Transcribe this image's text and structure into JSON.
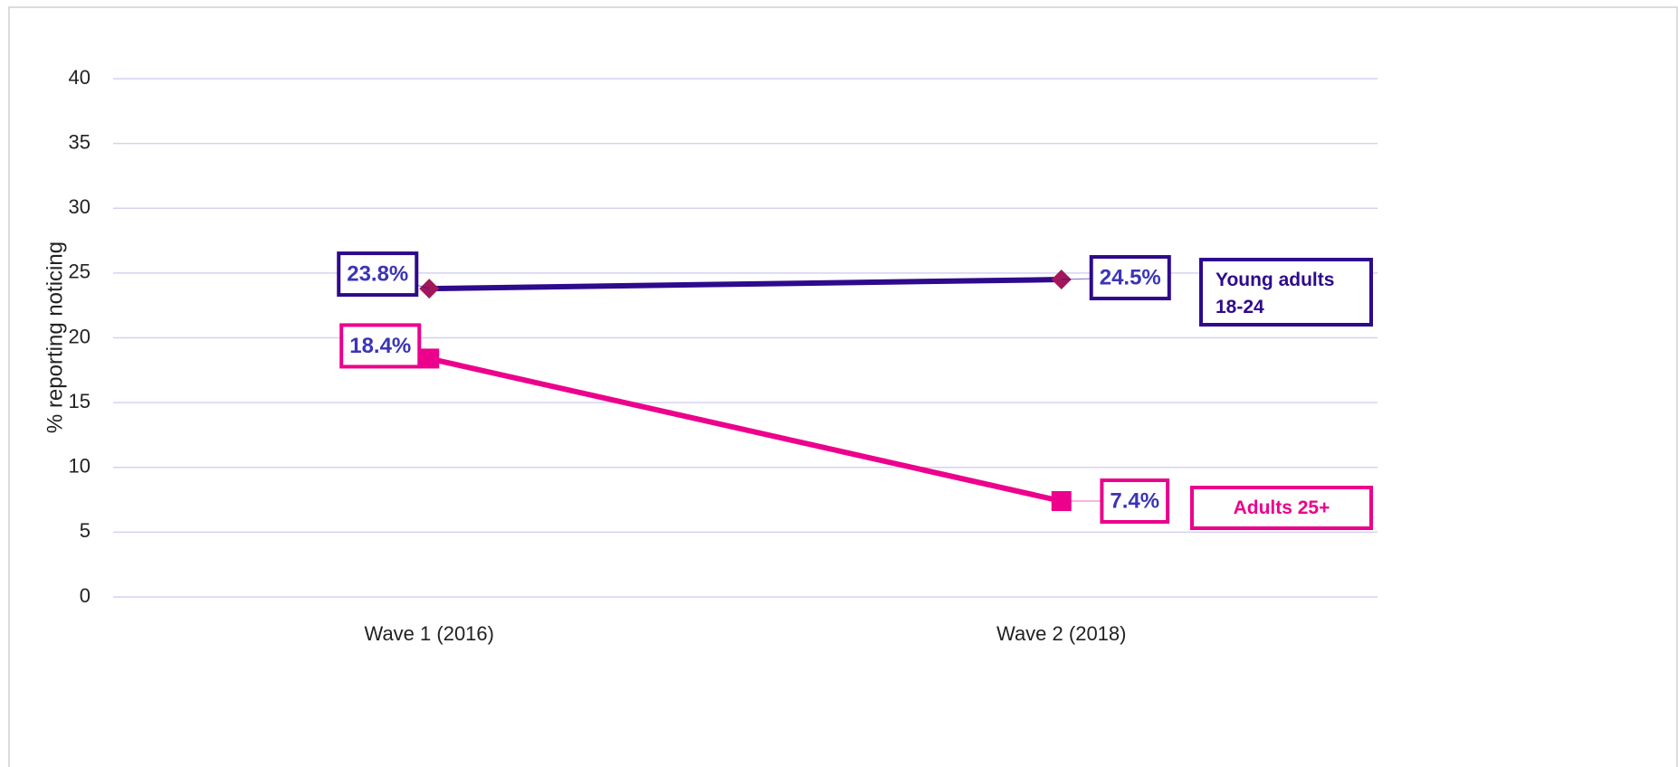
{
  "chart_data": {
    "type": "line",
    "y_label": "% reporting noticing",
    "categories": [
      "Wave 1 (2016)",
      "Wave 2 (2018)"
    ],
    "series": [
      {
        "name": "Young adults 18-24",
        "color": "#2e0a8c",
        "marker": "diamond",
        "marker_color": "#a3175a",
        "values": [
          23.8,
          24.5
        ],
        "value_labels": [
          "23.8%",
          "24.5%"
        ]
      },
      {
        "name": "Adults 25+",
        "color": "#ec008c",
        "marker": "square",
        "marker_color": "#ec008c",
        "values": [
          18.4,
          7.4
        ],
        "value_labels": [
          "18.4%",
          "7.4%"
        ]
      }
    ],
    "ylim": [
      0,
      40
    ],
    "yticks": [
      0,
      5,
      10,
      15,
      20,
      25,
      30,
      35,
      40
    ],
    "grid": true
  }
}
